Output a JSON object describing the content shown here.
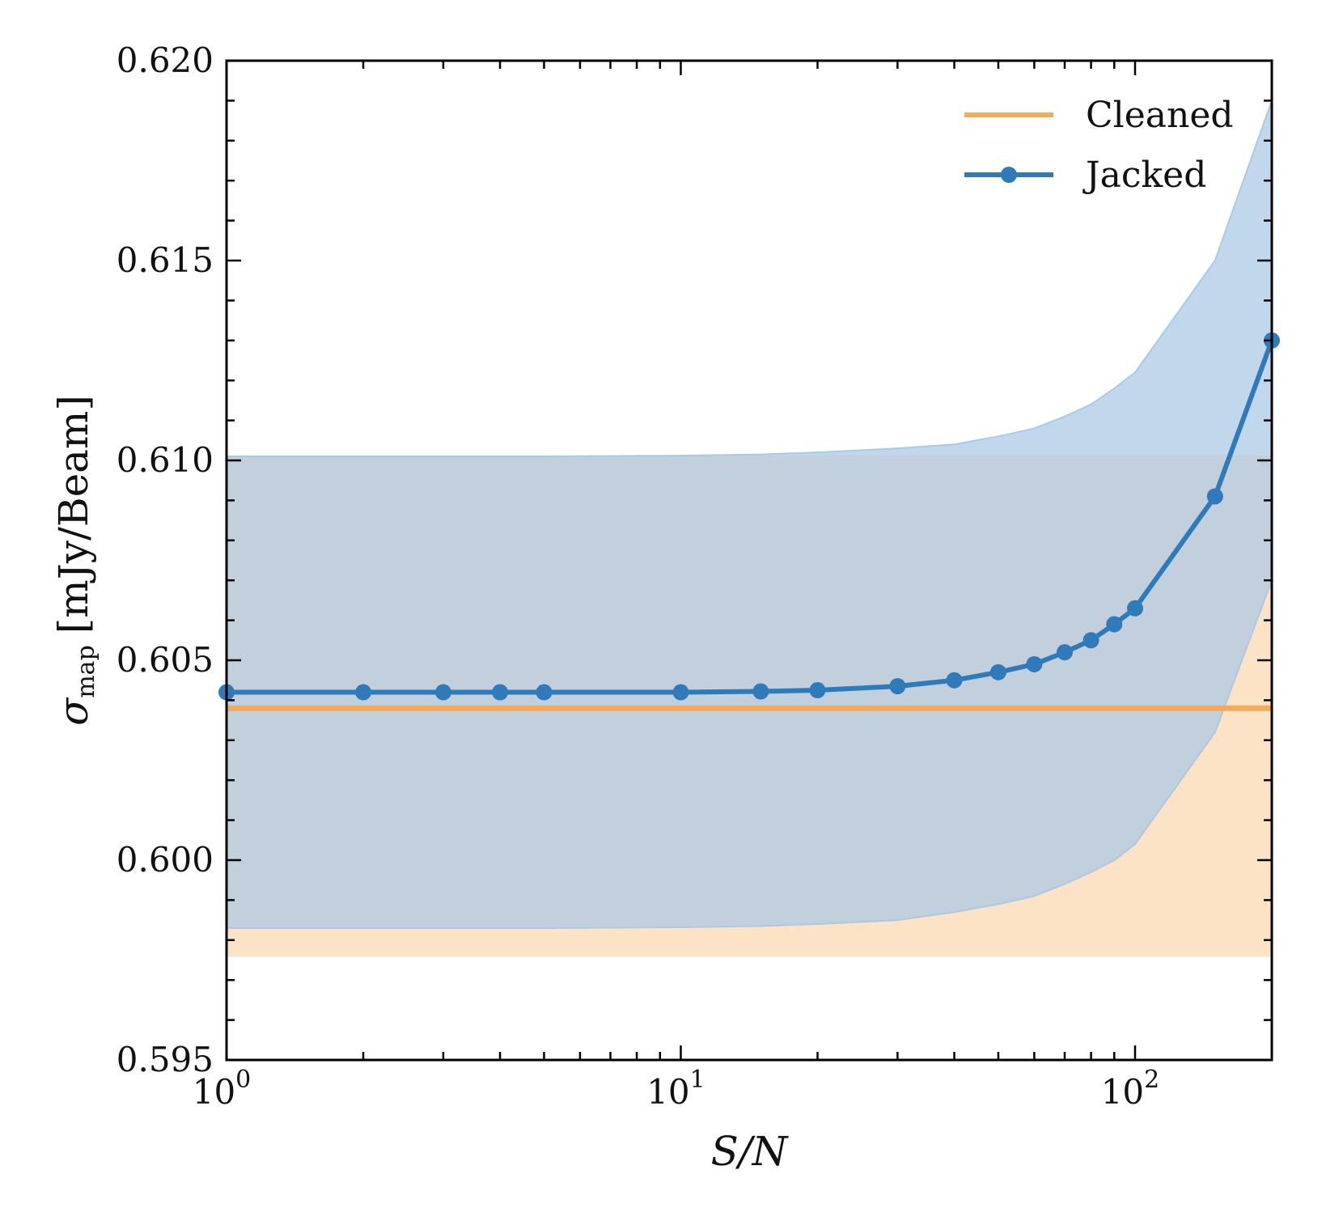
{
  "chart_data": {
    "type": "line",
    "x_scale": "log",
    "xlim": [
      1,
      200
    ],
    "ylim": [
      0.595,
      0.62
    ],
    "x_ticks": [
      1,
      10,
      100
    ],
    "x_tick_labels": [
      {
        "base": "10",
        "exp": "0"
      },
      {
        "base": "10",
        "exp": "1"
      },
      {
        "base": "10",
        "exp": "2"
      }
    ],
    "y_ticks": [
      0.595,
      0.6,
      0.605,
      0.61,
      0.615,
      0.62
    ],
    "y_tick_labels": [
      "0.595",
      "0.600",
      "0.605",
      "0.610",
      "0.615",
      "0.620"
    ],
    "xlabel": "S/N",
    "ylabel_symbol": "σ",
    "ylabel_subscript": "map",
    "ylabel_units": "[mJy/Beam]",
    "legend_position": "top-right",
    "series": [
      {
        "name": "Cleaned",
        "color": "#f5a95b",
        "band_color": "#fde3c6",
        "x": [
          1,
          200
        ],
        "values": [
          0.6038,
          0.6038
        ],
        "band_low": [
          0.5976,
          0.5976
        ],
        "band_high": [
          0.6101,
          0.6101
        ]
      },
      {
        "name": "Jacked",
        "color": "#2f7ab9",
        "band_color": "#a9c9e5",
        "x": [
          1,
          2,
          3,
          4,
          5,
          10,
          15,
          20,
          30,
          40,
          50,
          60,
          70,
          80,
          90,
          100,
          150,
          200
        ],
        "values": [
          0.6042,
          0.6042,
          0.6042,
          0.6042,
          0.6042,
          0.6042,
          0.60422,
          0.60425,
          0.60435,
          0.6045,
          0.6047,
          0.6049,
          0.6052,
          0.6055,
          0.6059,
          0.6063,
          0.6091,
          0.613
        ],
        "band_low": [
          0.5983,
          0.5983,
          0.5983,
          0.5983,
          0.5983,
          0.59832,
          0.59835,
          0.5984,
          0.5985,
          0.5987,
          0.5989,
          0.5991,
          0.5994,
          0.5997,
          0.6,
          0.6004,
          0.6032,
          0.607
        ],
        "band_high": [
          0.6101,
          0.6101,
          0.6101,
          0.6101,
          0.6101,
          0.61012,
          0.61015,
          0.6102,
          0.6103,
          0.6104,
          0.6106,
          0.6108,
          0.6111,
          0.6114,
          0.6118,
          0.6122,
          0.615,
          0.619
        ]
      }
    ]
  }
}
